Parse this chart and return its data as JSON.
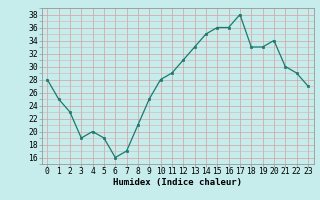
{
  "x": [
    0,
    1,
    2,
    3,
    4,
    5,
    6,
    7,
    8,
    9,
    10,
    11,
    12,
    13,
    14,
    15,
    16,
    17,
    18,
    19,
    20,
    21,
    22,
    23
  ],
  "y": [
    28,
    25,
    23,
    19,
    20,
    19,
    16,
    17,
    21,
    25,
    28,
    29,
    31,
    33,
    35,
    36,
    36,
    38,
    33,
    33,
    34,
    30,
    29,
    27
  ],
  "line_color": "#1a7a6e",
  "marker_color": "#1a7a6e",
  "bg_color": "#c6ecec",
  "grid_color_major": "#aad4d4",
  "grid_color_minor": "#bce0e0",
  "xlabel": "Humidex (Indice chaleur)",
  "ylim": [
    15,
    39
  ],
  "yticks": [
    16,
    18,
    20,
    22,
    24,
    26,
    28,
    30,
    32,
    34,
    36,
    38
  ],
  "xlim": [
    -0.5,
    23.5
  ],
  "label_fontsize": 6.5,
  "tick_fontsize": 5.8
}
